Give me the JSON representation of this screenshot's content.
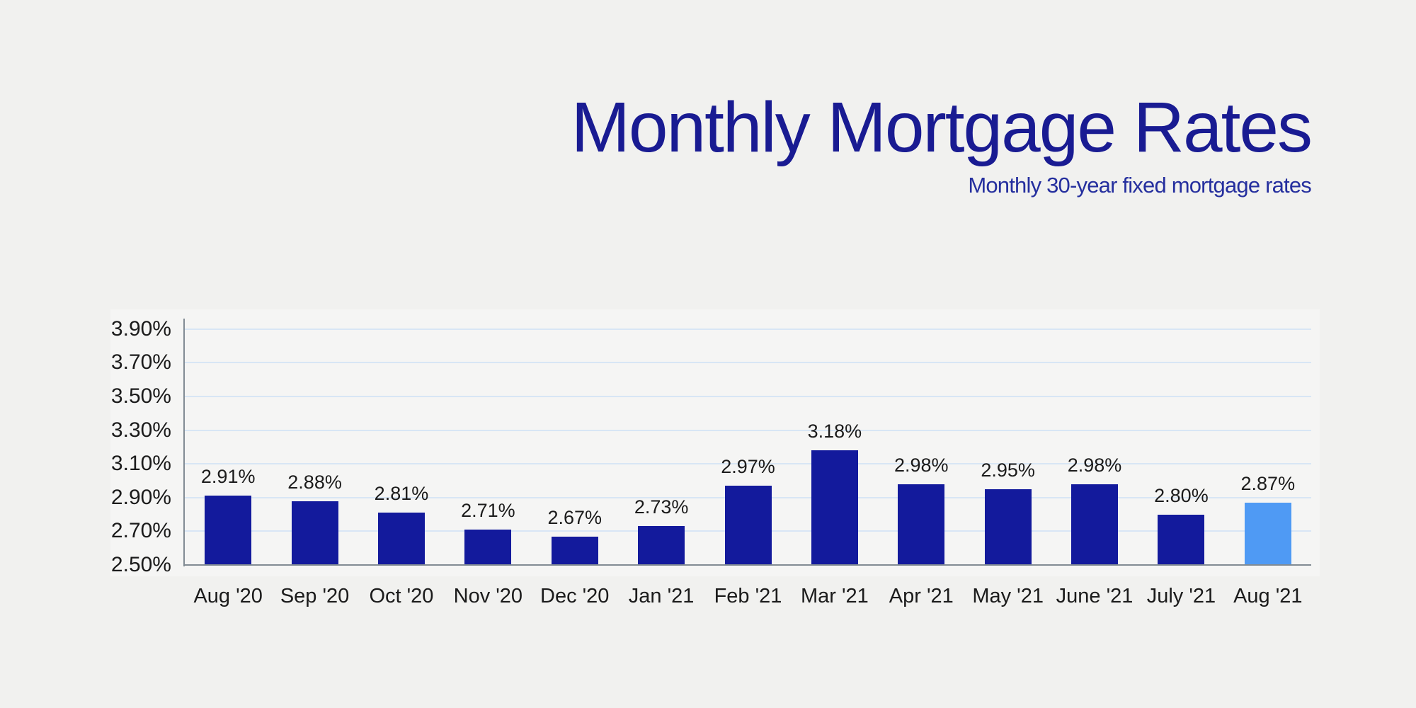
{
  "page": {
    "background_color": "#f1f1ef"
  },
  "header": {
    "title": "Monthly Mortgage Rates",
    "subtitle": "Monthly 30-year fixed mortgage rates",
    "title_color": "#191b92",
    "subtitle_color": "#252f9e"
  },
  "chart_data": {
    "type": "bar",
    "title": "Monthly Mortgage Rates",
    "subtitle": "Monthly 30-year fixed mortgage rates",
    "categories": [
      "Aug '20",
      "Sep '20",
      "Oct '20",
      "Nov '20",
      "Dec '20",
      "Jan '21",
      "Feb '21",
      "Mar '21",
      "Apr '21",
      "May '21",
      "June '21",
      "July '21",
      "Aug '21"
    ],
    "values": [
      2.91,
      2.88,
      2.81,
      2.71,
      2.67,
      2.73,
      2.97,
      3.18,
      2.98,
      2.95,
      2.98,
      2.8,
      2.87
    ],
    "data_labels": [
      "2.91%",
      "2.88%",
      "2.81%",
      "2.71%",
      "2.67%",
      "2.73%",
      "2.97%",
      "3.18%",
      "2.98%",
      "2.95%",
      "2.98%",
      "2.80%",
      "2.87%"
    ],
    "xlabel": "",
    "ylabel": "",
    "y_axis": {
      "ticks": [
        "2.50%",
        "2.70%",
        "2.90%",
        "3.10%",
        "3.30%",
        "3.50%",
        "3.70%",
        "3.90%"
      ],
      "tick_values": [
        2.5,
        2.7,
        2.9,
        3.1,
        3.3,
        3.5,
        3.7,
        3.9
      ],
      "min": 2.5,
      "max": 3.9,
      "step": 0.2
    },
    "ylim": [
      2.5,
      3.9
    ],
    "grid": true,
    "legend": false,
    "highlight_index": 12,
    "colors": {
      "bar": "#131a9c",
      "highlight_bar": "#4f9af4",
      "gridline": "#d8e6f5",
      "axis": "#828c94",
      "value_label": "#1b1b1b",
      "tick_label": "#1b1b1b",
      "category_label": "#1b1b1b",
      "plot_panel": "#f5f5f4"
    }
  }
}
